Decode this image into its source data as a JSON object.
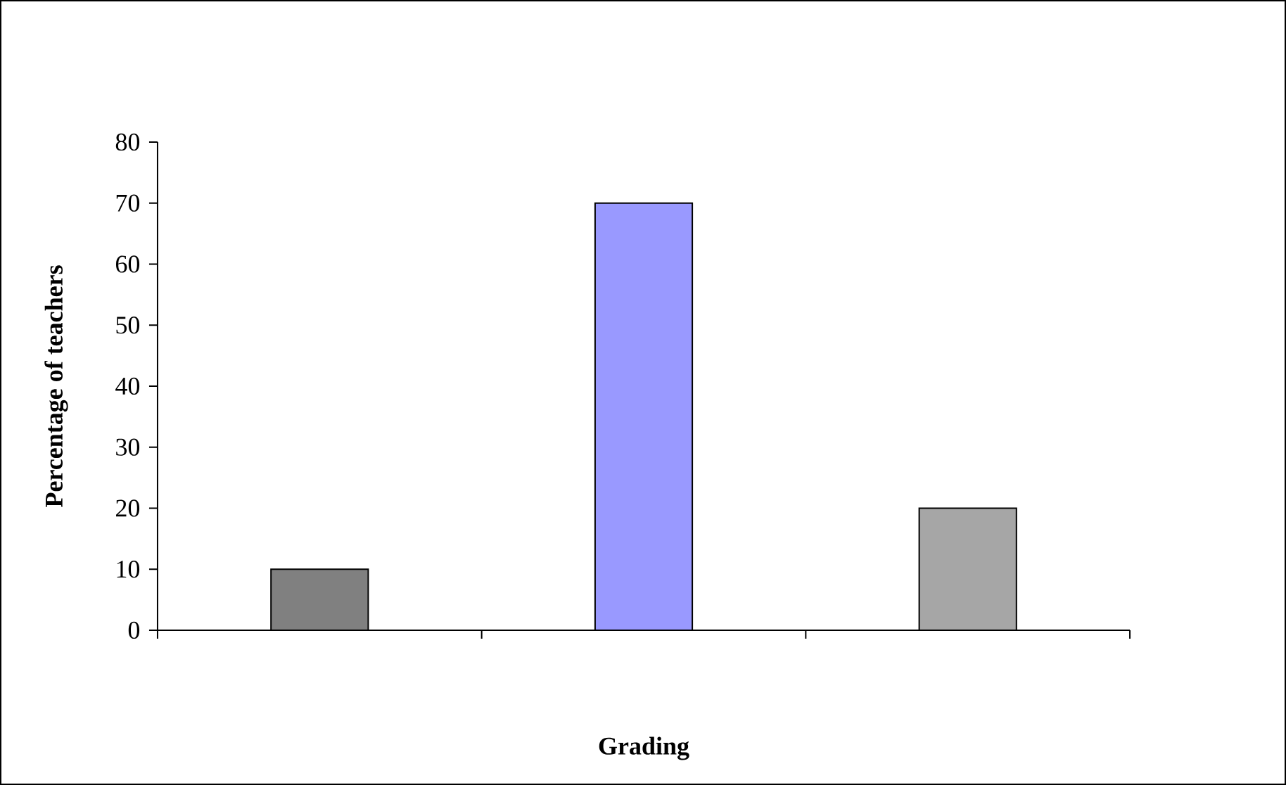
{
  "chart_data": {
    "type": "bar",
    "xlabel": "Grading",
    "ylabel": "Percentage of teachers",
    "categories": [
      null,
      null,
      null
    ],
    "values": [
      10,
      70,
      20
    ],
    "colors": [
      "#808080",
      "#9999ff",
      "#a6a6a6"
    ],
    "ylim": [
      0,
      80
    ],
    "yticks": [
      0,
      10,
      20,
      30,
      40,
      50,
      60,
      70,
      80
    ],
    "grid": false
  }
}
